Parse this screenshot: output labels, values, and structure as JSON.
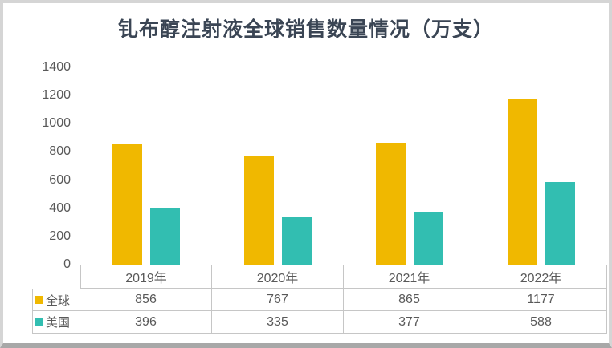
{
  "colors": {
    "series_global": "#F0B800",
    "series_us": "#32BEB1",
    "title_text": "#3A4554",
    "axis_text": "#595959",
    "table_border": "#C6C6C6"
  },
  "chart_data": {
    "type": "bar",
    "title": "钆布醇注射液全球销售数量情况（万支）",
    "categories": [
      "2019年",
      "2020年",
      "2021年",
      "2022年"
    ],
    "series": [
      {
        "name": "全球",
        "color": "#F0B800",
        "values": [
          856,
          767,
          865,
          1177
        ]
      },
      {
        "name": "美国",
        "color": "#32BEB1",
        "values": [
          396,
          335,
          377,
          588
        ]
      }
    ],
    "xlabel": "",
    "ylabel": "",
    "ylim": [
      0,
      1400
    ],
    "yticks": [
      0,
      200,
      400,
      600,
      800,
      1000,
      1200,
      1400
    ],
    "grid": false,
    "legend_position": "data-table-left",
    "data_table_shown": true
  }
}
